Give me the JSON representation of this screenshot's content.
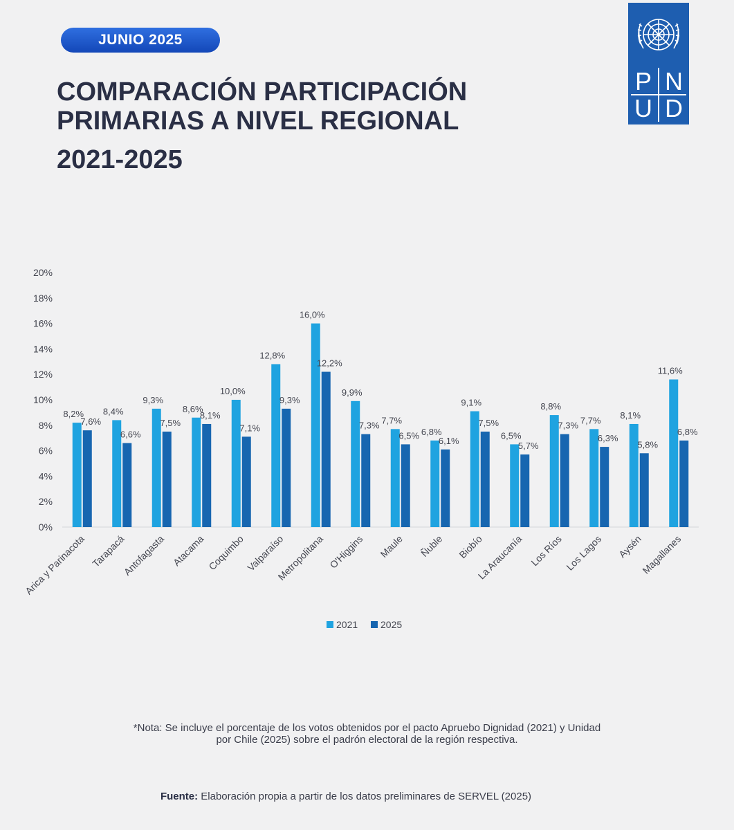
{
  "badge": "JUNIO 2025",
  "title_lines": [
    "COMPARACIÓN PARTICIPACIÓN",
    "PRIMARIAS A NIVEL REGIONAL"
  ],
  "years": "2021-2025",
  "logo": {
    "letters": [
      "P",
      "N",
      "U",
      "D"
    ],
    "icon": "un-emblem-icon",
    "color": "#1e5eb0"
  },
  "chart_data": {
    "type": "bar",
    "categories": [
      "Arica y Parinacota",
      "Tarapacá",
      "Antofagasta",
      "Atacama",
      "Coquimbo",
      "Valparaíso",
      "Metropolitana",
      "O'Higgins",
      "Maule",
      "Ñuble",
      "Biobío",
      "La Araucanía",
      "Los Ríos",
      "Los Lagos",
      "Aysén",
      "Magallanes"
    ],
    "series": [
      {
        "name": "2021",
        "color": "#1fa3e0",
        "values": [
          8.2,
          8.4,
          9.3,
          8.6,
          10.0,
          12.8,
          16.0,
          9.9,
          7.7,
          6.8,
          9.1,
          6.5,
          8.8,
          7.7,
          8.1,
          11.6
        ],
        "labels": [
          "8,2%",
          "8,4%",
          "9,3%",
          "8,6%",
          "10,0%",
          "12,8%",
          "16,0%",
          "9,9%",
          "7,7%",
          "6,8%",
          "9,1%",
          "6,5%",
          "8,8%",
          "7,7%",
          "8,1%",
          "11,6%"
        ]
      },
      {
        "name": "2025",
        "color": "#1766b0",
        "values": [
          7.6,
          6.6,
          7.5,
          8.1,
          7.1,
          9.3,
          12.2,
          7.3,
          6.5,
          6.1,
          7.5,
          5.7,
          7.3,
          6.3,
          5.8,
          6.8
        ],
        "labels": [
          "7,6%",
          "6,6%",
          "7,5%",
          "8,1%",
          "7,1%",
          "9,3%",
          "12,2%",
          "7,3%",
          "6,5%",
          "6,1%",
          "7,5%",
          "5,7%",
          "7,3%",
          "6,3%",
          "5,8%",
          "6,8%"
        ]
      }
    ],
    "y_ticks": [
      "0%",
      "2%",
      "4%",
      "6%",
      "8%",
      "10%",
      "12%",
      "14%",
      "16%",
      "18%",
      "20%"
    ],
    "ylim": [
      0,
      20
    ],
    "grid": false,
    "legend": "bottom"
  },
  "note": [
    "*Nota: Se incluye el porcentaje de los votos obtenidos por el pacto Apruebo Dignidad (2021) y Unidad",
    "por Chile (2025) sobre el padrón electoral de la región respectiva."
  ],
  "source": {
    "label": "Fuente:",
    "text": " Elaboración propia a partir de los datos preliminares de SERVEL (2025)"
  }
}
